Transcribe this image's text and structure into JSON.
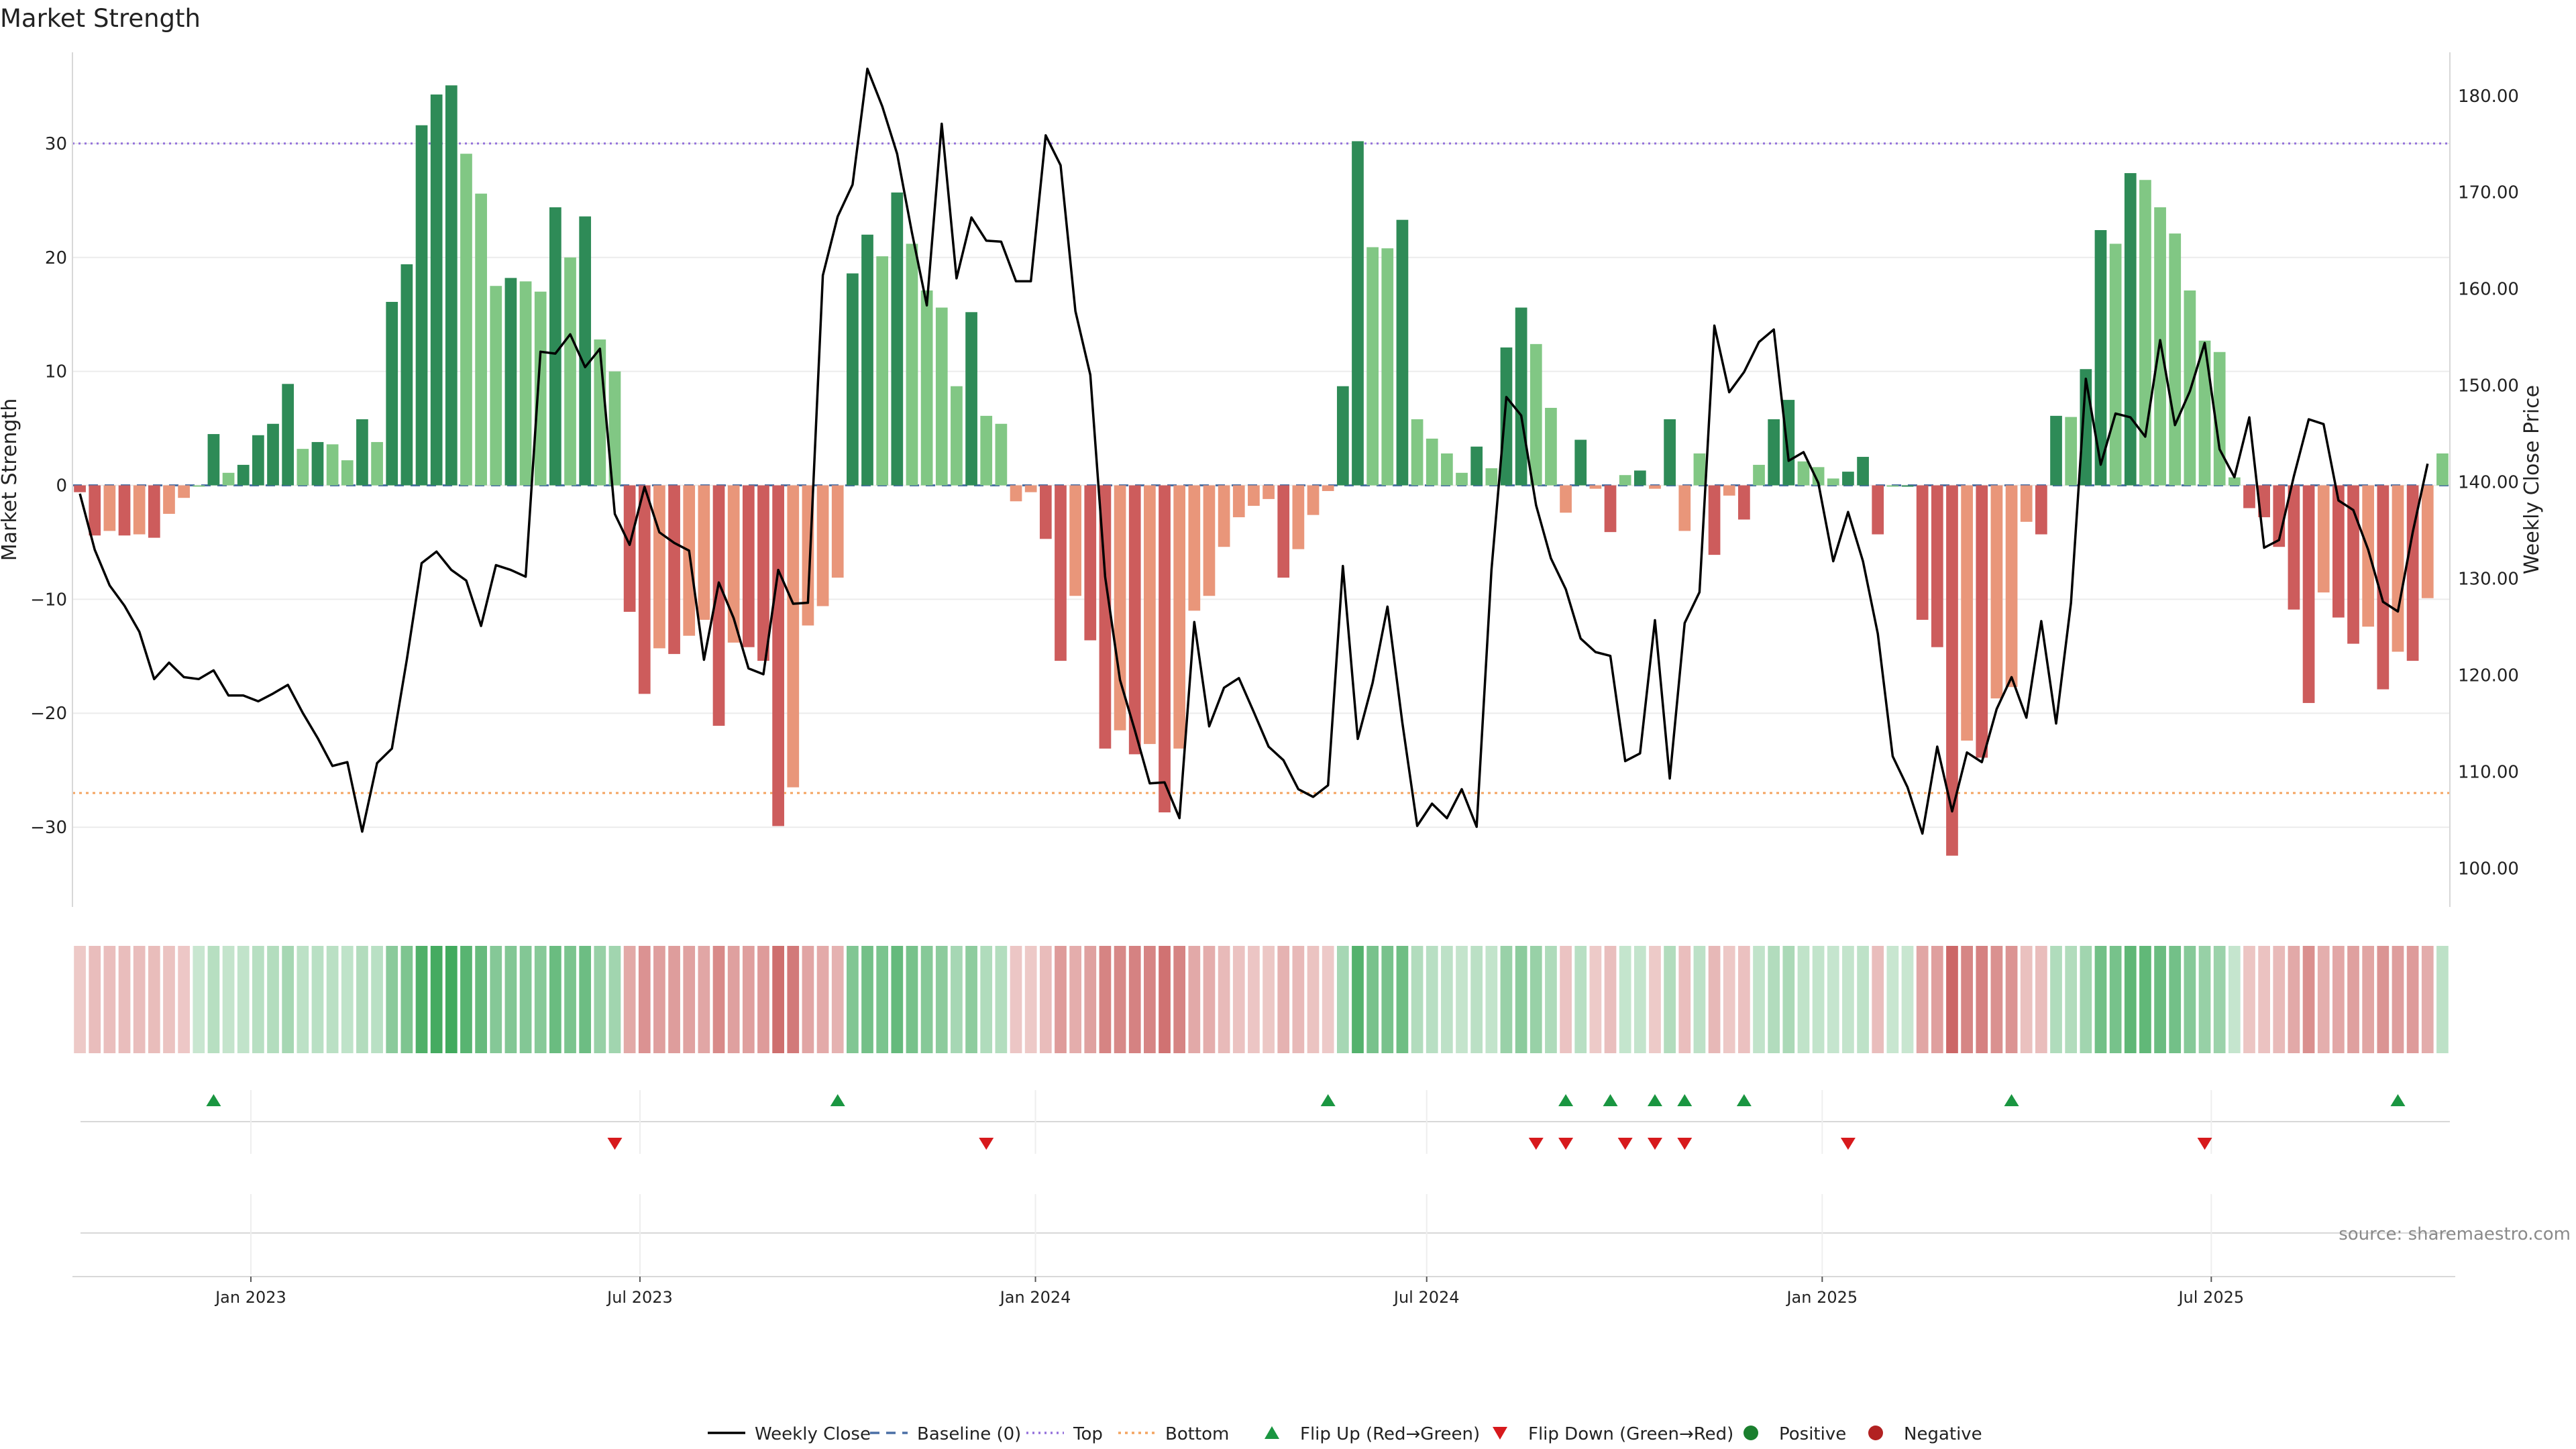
{
  "chart_data": {
    "type": "bar",
    "title": "Market Strength",
    "ylabel_left": "Market Strength",
    "ylabel_right": "Weekly Close Price",
    "ylim_left": [
      -37,
      38
    ],
    "ylim_right": [
      96.0,
      184.5
    ],
    "yticks_left": [
      30,
      20,
      10,
      0,
      -10,
      -20,
      -30
    ],
    "yticks_left_labels": [
      "30",
      "20",
      "10",
      "0",
      "−10",
      "−20",
      "−30"
    ],
    "yticks_right": [
      180,
      170,
      160,
      150,
      140,
      130,
      120,
      110,
      100
    ],
    "yticks_right_labels": [
      "180.00",
      "170.00",
      "160.00",
      "150.00",
      "140.00",
      "130.00",
      "120.00",
      "110.00",
      "100.00"
    ],
    "date_range": [
      "2022-10-10",
      "2025-10-20"
    ],
    "x_ticks": [
      {
        "date": "2023-01-01",
        "label": "Jan 2023"
      },
      {
        "date": "2023-07-01",
        "label": "Jul 2023"
      },
      {
        "date": "2024-01-01",
        "label": "Jan 2024"
      },
      {
        "date": "2024-07-01",
        "label": "Jul 2024"
      },
      {
        "date": "2025-01-01",
        "label": "Jan 2025"
      },
      {
        "date": "2025-07-01",
        "label": "Jul 2025"
      }
    ],
    "reference_lines": {
      "top": 30,
      "bottom": -27,
      "baseline": 0
    },
    "strength": [
      -0.6,
      -4.4,
      -4,
      -4.4,
      -4.3,
      -4.6,
      -2.5,
      -1.1,
      0,
      4.5,
      1.1,
      1.8,
      4.4,
      5.4,
      8.9,
      3.2,
      3.8,
      3.6,
      2.2,
      5.8,
      3.8,
      16.1,
      19.4,
      31.6,
      34.3,
      35.1,
      29.1,
      25.6,
      17.5,
      18.2,
      17.9,
      17,
      24.4,
      20,
      23.6,
      12.8,
      10,
      -11.1,
      -18.3,
      -14.3,
      -14.8,
      -13.2,
      -11.8,
      -21.1,
      -13.8,
      -14.2,
      -15.4,
      -29.9,
      -26.5,
      -12.3,
      -10.6,
      -8.1,
      18.6,
      22,
      20.1,
      25.7,
      21.2,
      17.1,
      15.6,
      8.7,
      15.2,
      6.1,
      5.4,
      -1.4,
      -0.6,
      -4.7,
      -15.4,
      -9.7,
      -13.6,
      -23.1,
      -21.5,
      -23.6,
      -22.7,
      -28.7,
      -23.1,
      -11,
      -9.7,
      -5.4,
      -2.8,
      -1.8,
      -1.2,
      -8.1,
      -5.6,
      -2.6,
      -0.5,
      8.7,
      30.2,
      20.9,
      20.8,
      23.3,
      5.8,
      4.1,
      2.8,
      1.1,
      3.4,
      1.5,
      12.1,
      15.6,
      12.4,
      6.8,
      -2.4,
      4,
      -0.3,
      -4.1,
      0.9,
      1.3,
      -0.3,
      5.8,
      -4,
      2.8,
      -6.1,
      -0.9,
      -3,
      1.8,
      5.8,
      7.5,
      2.1,
      1.6,
      0.6,
      1.2,
      2.5,
      -4.3,
      0,
      0,
      -11.8,
      -14.2,
      -32.5,
      -22.4,
      -23.9,
      -18.7,
      -17.7,
      -3.2,
      -4.3,
      6.1,
      6,
      10.2,
      22.4,
      21.2,
      27.4,
      26.8,
      24.4,
      22.1,
      17.1,
      12.7,
      11.7,
      0.7,
      -2,
      -2.8,
      -5.4,
      -10.9,
      -19.1,
      -9.4,
      -11.6,
      -13.9,
      -12.4,
      -17.9,
      -14.6,
      -15.4,
      -9.9,
      2.8
    ],
    "weekly_close": [
      138.8,
      133,
      129.3,
      127.2,
      124.5,
      119.6,
      121.3,
      119.8,
      119.6,
      120.5,
      117.9,
      117.9,
      117.3,
      118.1,
      119,
      116.1,
      113.5,
      110.6,
      111,
      103.8,
      110.9,
      112.4,
      121.6,
      131.6,
      132.8,
      130.9,
      129.8,
      125.1,
      131.4,
      130.9,
      130.2,
      153.5,
      153.3,
      155.3,
      151.9,
      153.8,
      136.7,
      133.5,
      139.5,
      134.8,
      133.7,
      132.9,
      121.6,
      129.6,
      125.9,
      120.7,
      120.1,
      130.9,
      127.4,
      127.5,
      161.4,
      167.5,
      170.8,
      182.8,
      178.9,
      174,
      165.8,
      158.3,
      177.1,
      161.1,
      167.4,
      165,
      164.9,
      160.8,
      160.8,
      175.9,
      172.8,
      157.7,
      151.1,
      130.2,
      119.5,
      114.3,
      108.8,
      108.9,
      105.2,
      125.5,
      114.7,
      118.7,
      119.7,
      116.2,
      112.6,
      111.2,
      108.2,
      107.4,
      108.6,
      131.3,
      113.4,
      119.2,
      127.1,
      115.1,
      104.4,
      106.7,
      105.2,
      108.2,
      104.3,
      130.9,
      148.8,
      146.9,
      137.6,
      132.1,
      128.9,
      123.8,
      122.4,
      122,
      111.1,
      111.9,
      125.7,
      109.3,
      125.4,
      128.6,
      156.2,
      149.3,
      151.4,
      154.5,
      155.8,
      142.2,
      143.1,
      139.9,
      131.8,
      136.9,
      131.8,
      124.3,
      111.6,
      108.4,
      103.6,
      112.6,
      105.9,
      112,
      111,
      116.5,
      119.8,
      115.6,
      125.6,
      115,
      127.5,
      150.7,
      141.8,
      147.1,
      146.7,
      144.7,
      154.7,
      145.9,
      149.4,
      154.4,
      143.4,
      140.5,
      146.7,
      133.2,
      134,
      140.6,
      146.5,
      146,
      138.1,
      137.1,
      133,
      127.6,
      126.6,
      134.8,
      141.9
    ],
    "flip_up_weeks": [
      9,
      51,
      84,
      100,
      103,
      106,
      108,
      112,
      130,
      156
    ],
    "flip_down_weeks": [
      36,
      61,
      98,
      100,
      104,
      106,
      108,
      119,
      143
    ],
    "legend": [
      "Weekly Close",
      "Baseline (0)",
      "Top",
      "Bottom",
      "Flip Up (Red→Green)",
      "Flip Down (Green→Red)",
      "Positive",
      "Negative"
    ],
    "legend_placement": "bottom-center",
    "source": "source: sharemaestro.com",
    "colors": {
      "strong_green": "#2e8b57",
      "light_green": "#81c784",
      "strong_red": "#cd5c5c",
      "light_red": "#e9967a",
      "price_line": "#000000",
      "baseline": "#4a6fa5",
      "top_line": "#9370db",
      "bottom_line": "#f4a460",
      "flip_up": "#1a9641",
      "flip_down": "#d7191c",
      "positive": "#1a7f2e",
      "negative": "#b22222"
    }
  }
}
